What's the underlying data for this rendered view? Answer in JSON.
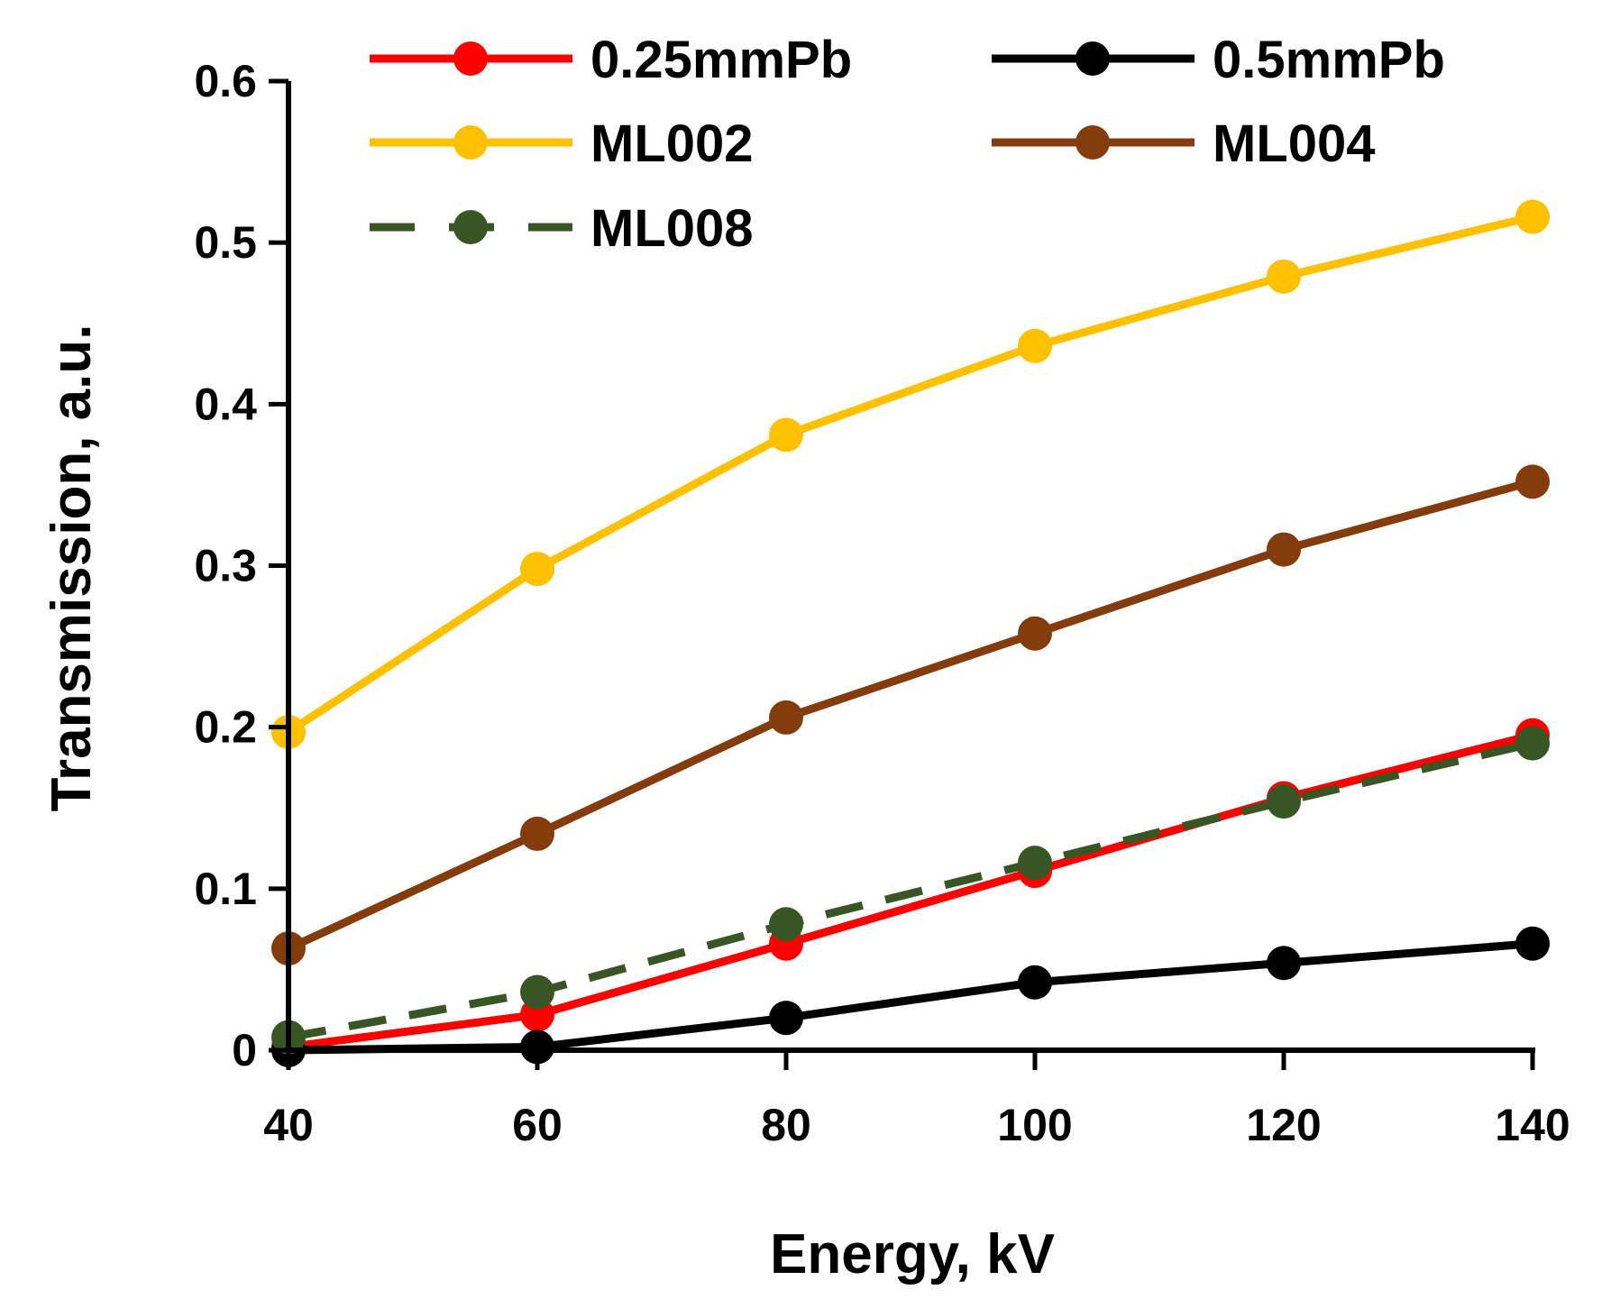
{
  "chart_data": {
    "type": "line",
    "title": "",
    "xlabel": "Energy, kV",
    "ylabel": "Transmission, a.u.",
    "xlim": [
      40,
      140
    ],
    "ylim": [
      0,
      0.6
    ],
    "grid": false,
    "legend_position": "top",
    "x": [
      40,
      60,
      80,
      100,
      120,
      140
    ],
    "xticks": [
      "40",
      "60",
      "80",
      "100",
      "120",
      "140"
    ],
    "yticks": [
      "0",
      "0.1",
      "0.2",
      "0.3",
      "0.4",
      "0.5",
      "0.6"
    ],
    "series": [
      {
        "name": "0.25mmPb",
        "color": "#ff0000",
        "dashed": false,
        "values": [
          0.002,
          0.022,
          0.066,
          0.111,
          0.156,
          0.195
        ]
      },
      {
        "name": "0.5mmPb",
        "color": "#000000",
        "dashed": false,
        "values": [
          0.0,
          0.002,
          0.02,
          0.042,
          0.054,
          0.066
        ]
      },
      {
        "name": "ML002",
        "color": "#ffc000",
        "dashed": false,
        "values": [
          0.197,
          0.298,
          0.381,
          0.436,
          0.479,
          0.516
        ]
      },
      {
        "name": "ML004",
        "color": "#843c0c",
        "dashed": false,
        "values": [
          0.063,
          0.134,
          0.206,
          0.258,
          0.31,
          0.352
        ]
      },
      {
        "name": "ML008",
        "color": "#375623",
        "dashed": true,
        "values": [
          0.008,
          0.036,
          0.078,
          0.116,
          0.154,
          0.19
        ]
      }
    ]
  }
}
